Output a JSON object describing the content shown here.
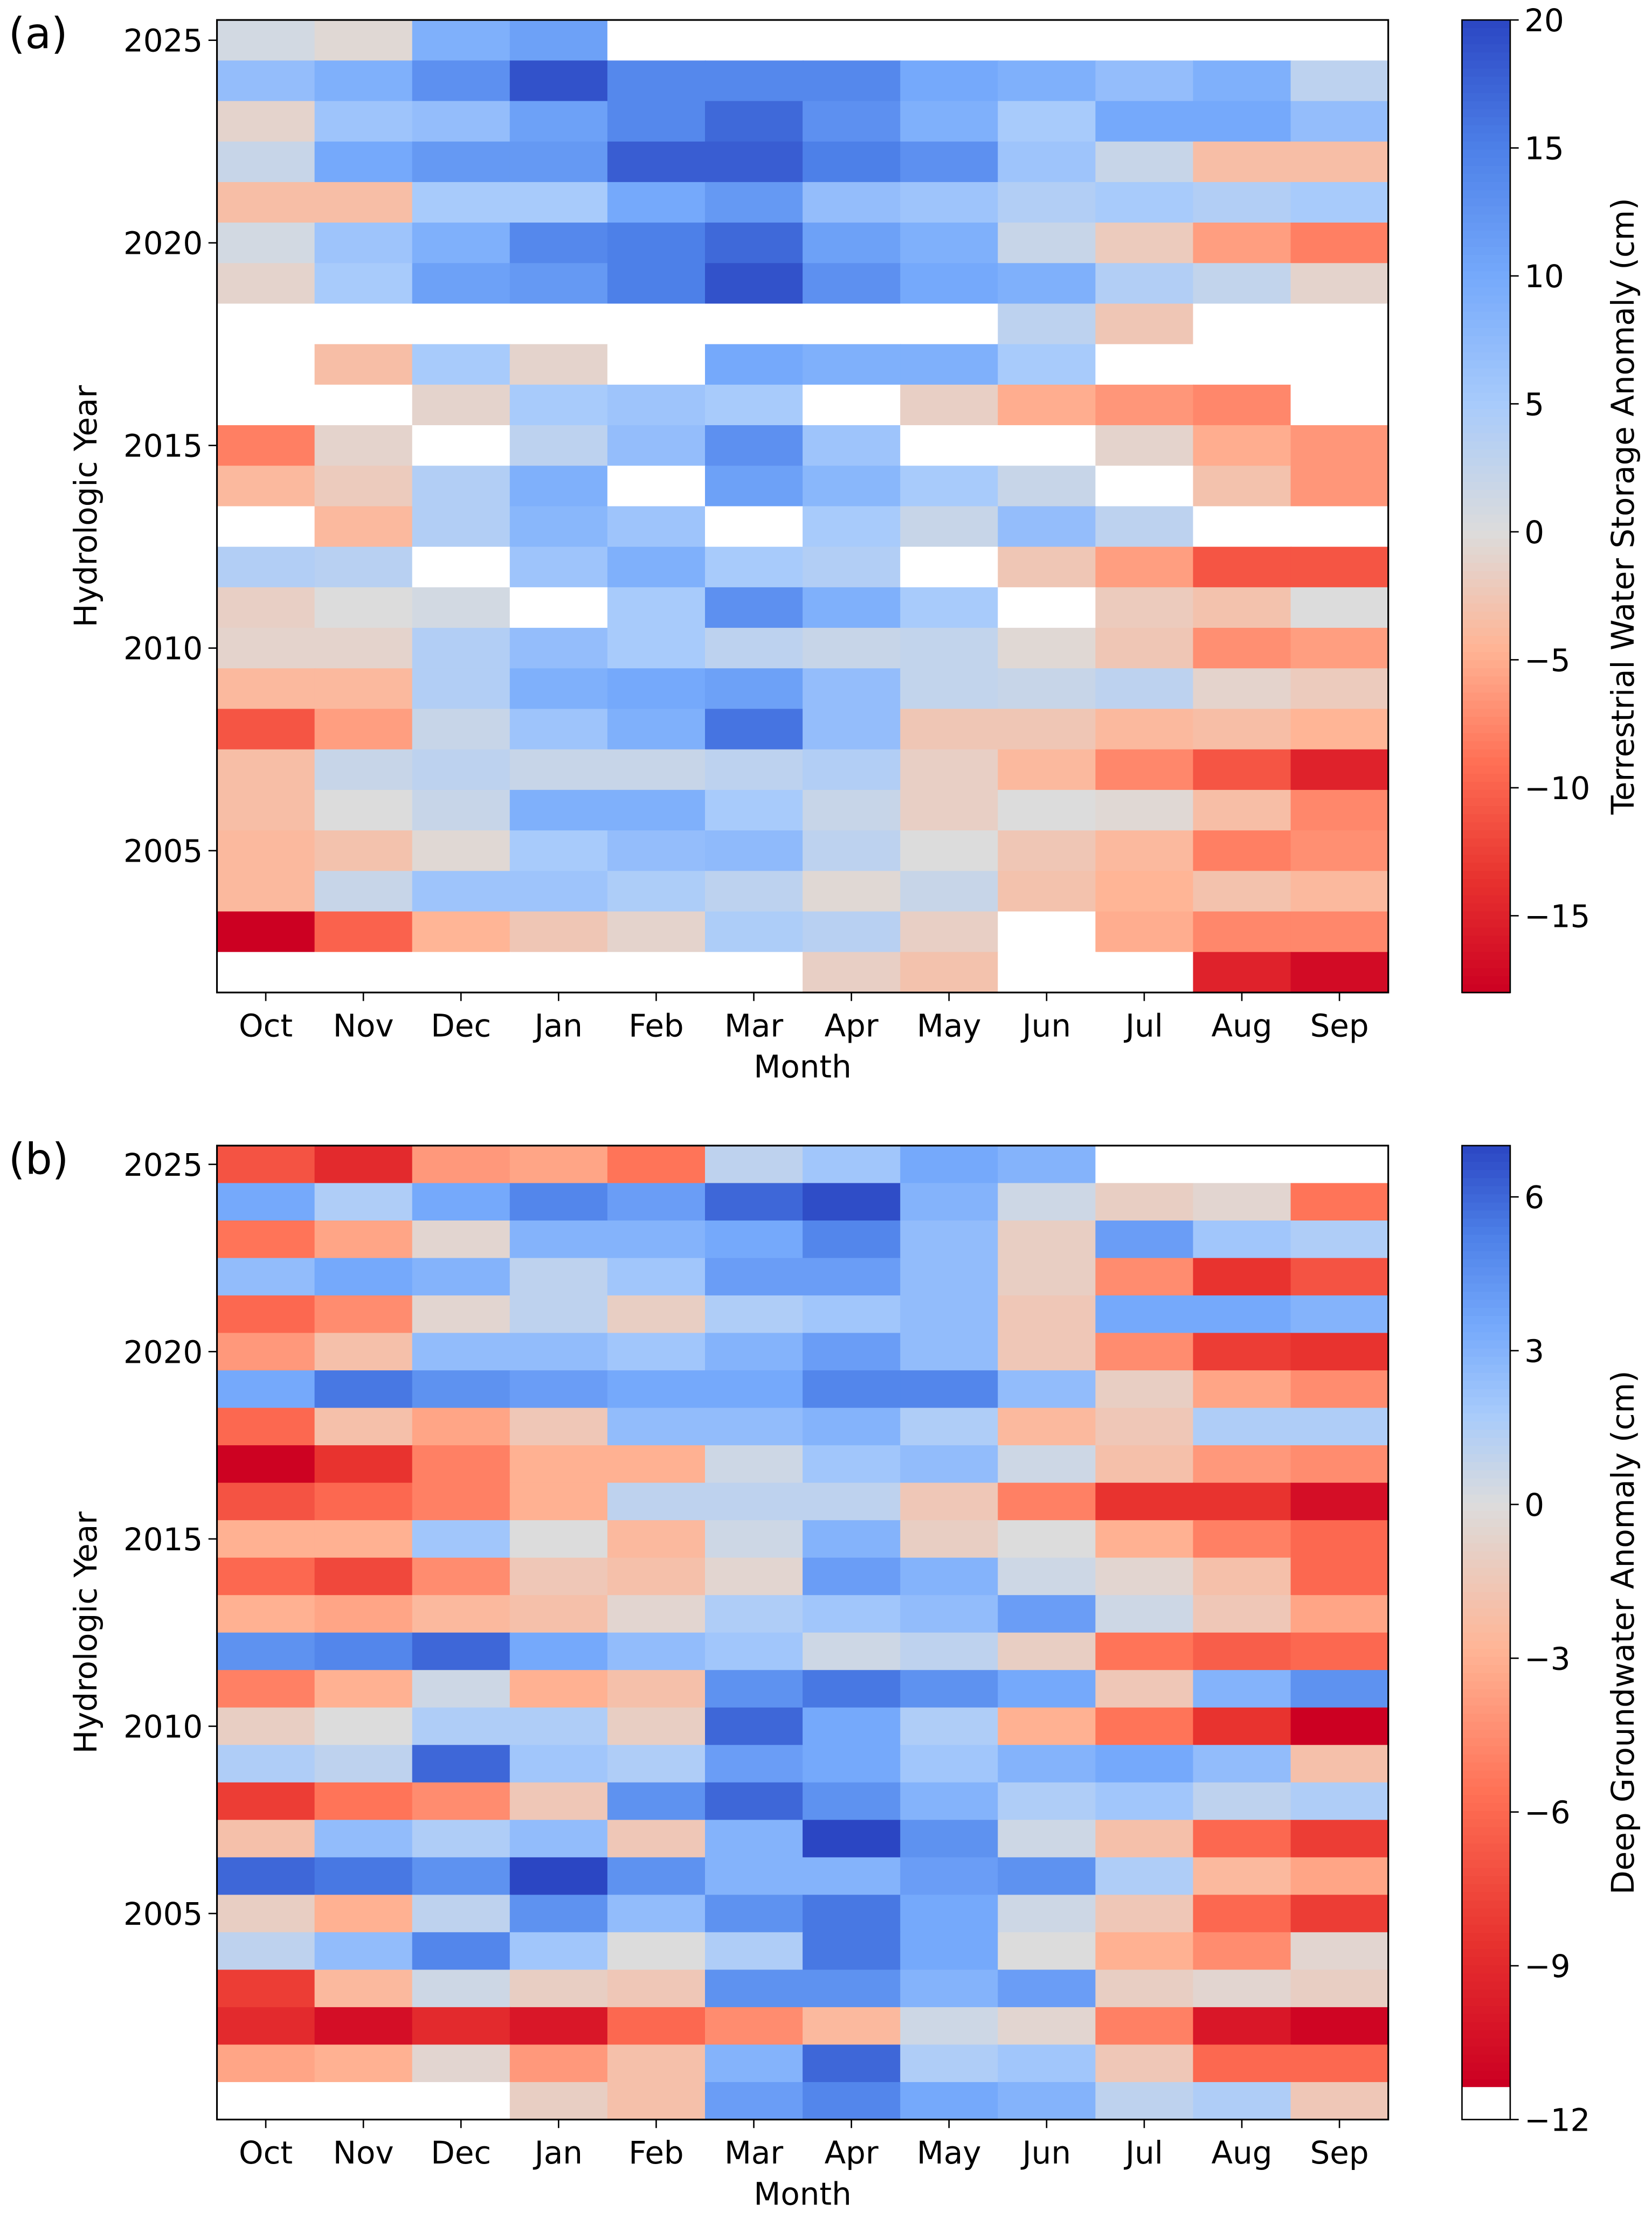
{
  "chart_data": [
    {
      "type": "heatmap",
      "panel_label": "(a)",
      "xlabel": "Month",
      "ylabel": "Hydrologic Year",
      "colorbar_label": "Terrestrial Water Storage Anomaly (cm)",
      "colorbar_range": [
        -18,
        20
      ],
      "colorbar_ticks": [
        20,
        15,
        10,
        5,
        0,
        -5,
        -10,
        -15
      ],
      "colorbar_tick_labels": [
        "20",
        "15",
        "10",
        "5",
        "0",
        "−5",
        "−10",
        "−15"
      ],
      "colormap": {
        "negative": "#cc0022",
        "center": "#dcdcdc",
        "positive": "#2b46c3",
        "missing": "#ffffff"
      },
      "x_categories": [
        "Oct",
        "Nov",
        "Dec",
        "Jan",
        "Feb",
        "Mar",
        "Apr",
        "May",
        "Jun",
        "Jul",
        "Aug",
        "Sep"
      ],
      "y_tick_labels": [
        "2025",
        "2020",
        "2015",
        "2010",
        "2005"
      ],
      "y_ticks": [
        2025,
        2020,
        2015,
        2010,
        2005
      ],
      "years": [
        2025,
        2024,
        2023,
        2022,
        2021,
        2020,
        2019,
        2018,
        2017,
        2016,
        2015,
        2014,
        2013,
        2012,
        2011,
        2010,
        2009,
        2008,
        2007,
        2006,
        2005,
        2004,
        2003,
        2002
      ],
      "values": [
        [
          1,
          -0.5,
          9,
          11,
          null,
          null,
          null,
          null,
          null,
          null,
          null,
          null
        ],
        [
          7,
          9,
          13,
          19,
          14,
          14,
          14,
          10,
          9,
          7,
          9,
          3
        ],
        [
          -1,
          6,
          7,
          11,
          14,
          17,
          13,
          9,
          5,
          10,
          10,
          7
        ],
        [
          2,
          10,
          12,
          12,
          18,
          18,
          15,
          13,
          6,
          2,
          -3.5,
          -3.5
        ],
        [
          -3.5,
          -3.5,
          5,
          5,
          10,
          12,
          7,
          6,
          4,
          5,
          4,
          5
        ],
        [
          1,
          6,
          9,
          14,
          15,
          17,
          11,
          9,
          2,
          -2,
          -6,
          -8
        ],
        [
          -1,
          5,
          11,
          12,
          15,
          19,
          13,
          10,
          9,
          4,
          2.5,
          -1
        ],
        [
          null,
          null,
          null,
          null,
          null,
          null,
          null,
          null,
          3,
          -2.5,
          null,
          null
        ],
        [
          null,
          -3.5,
          5,
          -1,
          null,
          10,
          9,
          9,
          5,
          null,
          null,
          null
        ],
        [
          null,
          null,
          -1,
          5,
          6,
          5,
          null,
          -1.5,
          -5,
          -6.5,
          -7.5,
          null
        ],
        [
          -8,
          -1,
          null,
          3,
          7,
          13,
          6,
          null,
          null,
          -1,
          -5,
          -6.5
        ],
        [
          -4,
          -2,
          4,
          9,
          null,
          11,
          8,
          5,
          2,
          null,
          -3,
          -6.5
        ],
        [
          null,
          -4,
          4,
          8,
          6,
          null,
          5,
          2,
          7,
          3,
          null,
          null
        ],
        [
          4,
          3.5,
          null,
          6,
          9,
          5,
          4,
          null,
          -2.5,
          -6,
          -11,
          -11
        ],
        [
          -1.5,
          0,
          1,
          null,
          5,
          13,
          9,
          5,
          null,
          -2,
          -3,
          0
        ],
        [
          -1,
          -1,
          4,
          7,
          5,
          3,
          2,
          2.5,
          -0.5,
          -2.5,
          -7,
          -6
        ],
        [
          -4,
          -4,
          4,
          9,
          10,
          11,
          7,
          2.5,
          2,
          3,
          -1,
          -2
        ],
        [
          -11,
          -6,
          2,
          6,
          9,
          16,
          7,
          -2.5,
          -2.5,
          -4,
          -3.5,
          -4.5
        ],
        [
          -3.5,
          2,
          3,
          2,
          2,
          3,
          4,
          -1.5,
          -4,
          -7.5,
          -11,
          -15
        ],
        [
          -3.5,
          0,
          2,
          9,
          9,
          5,
          2,
          -1.5,
          0,
          -0.5,
          -3.5,
          -7.5
        ],
        [
          -4,
          -3,
          -0.5,
          5,
          7,
          7.5,
          3,
          0,
          -2.5,
          -4,
          -8,
          -7
        ],
        [
          -4,
          2,
          6,
          6,
          4.5,
          3,
          -0.5,
          2,
          -3,
          -4.5,
          -3,
          -4
        ],
        [
          -18,
          -10,
          -4.5,
          -2.5,
          -1,
          4.5,
          3.5,
          -1.5,
          null,
          -5,
          -7.5,
          -7.5
        ],
        [
          null,
          null,
          null,
          null,
          null,
          null,
          -1.5,
          -3,
          null,
          null,
          -15,
          -17
        ]
      ]
    },
    {
      "type": "heatmap",
      "panel_label": "(b)",
      "xlabel": "Month",
      "ylabel": "Hydrologic Year",
      "colorbar_label": "Deep Groundwater Anomaly (cm)",
      "colorbar_range": [
        -12,
        7
      ],
      "colorbar_ticks": [
        6,
        3,
        0,
        -3,
        -6,
        -9,
        -12
      ],
      "colorbar_tick_labels": [
        "6",
        "3",
        "0",
        "−3",
        "−6",
        "−9",
        "−12"
      ],
      "colormap": {
        "negative": "#cc0022",
        "center": "#dcdcdc",
        "positive": "#2b46c3",
        "missing": "#ffffff"
      },
      "x_categories": [
        "Oct",
        "Nov",
        "Dec",
        "Jan",
        "Feb",
        "Mar",
        "Apr",
        "May",
        "Jun",
        "Jul",
        "Aug",
        "Sep"
      ],
      "y_tick_labels": [
        "2025",
        "2020",
        "2015",
        "2010",
        "2005"
      ],
      "y_ticks": [
        2025,
        2020,
        2015,
        2010,
        2005
      ],
      "years": [
        2025,
        2024,
        2023,
        2022,
        2021,
        2020,
        2019,
        2018,
        2017,
        2016,
        2015,
        2014,
        2013,
        2012,
        2011,
        2010,
        2009,
        2008,
        2007,
        2006,
        2005,
        2004,
        2003,
        2002,
        2001,
        2000
      ],
      "values": [
        [
          -7,
          -9,
          -4,
          -3.5,
          -5.5,
          1,
          2,
          3.5,
          3,
          null,
          null,
          null
        ],
        [
          3.5,
          1.5,
          3.5,
          5,
          4,
          6,
          6.8,
          3,
          0.5,
          -1,
          -0.5,
          -5.5
        ],
        [
          -5.5,
          -3.5,
          -0.5,
          3,
          3,
          3.5,
          5,
          2.5,
          -1,
          4,
          2,
          1.5
        ],
        [
          2.5,
          3.5,
          3,
          1,
          2,
          4,
          4,
          2.5,
          -1,
          -4.5,
          -8.5,
          -7
        ],
        [
          -6,
          -4.5,
          -0.5,
          1,
          -1,
          1.5,
          2,
          2.5,
          -1.5,
          3.5,
          3.5,
          3
        ],
        [
          -4,
          -2,
          2.5,
          2.5,
          2,
          3,
          4,
          2.5,
          -1.5,
          -4.5,
          -8,
          -8.5
        ],
        [
          3.5,
          5.5,
          4.5,
          4,
          3.5,
          3.5,
          5,
          5,
          2.5,
          -1,
          -3.5,
          -4.5
        ],
        [
          -6,
          -2,
          -3.5,
          -1.5,
          2.5,
          2.5,
          3,
          1.5,
          -2.5,
          -1.5,
          1.5,
          1.5
        ],
        [
          -11.2,
          -8.5,
          -5,
          -3,
          -3,
          0.5,
          2,
          2.5,
          0.5,
          -2,
          -4,
          -4.5
        ],
        [
          -7,
          -6,
          -5,
          -3,
          1,
          1,
          1,
          -1.5,
          -5,
          -8.5,
          -8.5,
          -10.5
        ],
        [
          -3,
          -3,
          2,
          0,
          -2.5,
          0.5,
          3,
          -1,
          0,
          -3,
          -5,
          -6
        ],
        [
          -6,
          -7.5,
          -4.5,
          -1.5,
          -2,
          -0.5,
          4,
          3,
          0.5,
          -0.5,
          -2,
          -6
        ],
        [
          -3,
          -3.5,
          -2.5,
          -2,
          -0.5,
          1.5,
          2,
          2.5,
          4,
          0.5,
          -1.5,
          -3.5
        ],
        [
          4.5,
          5,
          6,
          3.5,
          2.5,
          2,
          0.5,
          1,
          -1,
          -5.5,
          -6.5,
          -6
        ],
        [
          -5,
          -3,
          0.5,
          -3,
          -2,
          4.5,
          5.5,
          4.5,
          3.5,
          -1.5,
          3,
          4.5
        ],
        [
          -1,
          0,
          1.5,
          1.5,
          -1,
          6,
          3.5,
          1.5,
          -3,
          -5.5,
          -8.5,
          -11.5
        ],
        [
          1.5,
          1,
          6,
          2,
          1.5,
          4,
          3.5,
          2,
          3,
          3.5,
          2.5,
          -2
        ],
        [
          -8,
          -5.5,
          -4.5,
          -1.5,
          4.5,
          6,
          4.5,
          3,
          1.5,
          2,
          1,
          1.5
        ],
        [
          -2,
          2.5,
          1.5,
          2.5,
          -1.5,
          3,
          7,
          4.5,
          0.5,
          -2,
          -6,
          -8
        ],
        [
          6,
          5.5,
          4.5,
          7,
          4.5,
          3,
          3,
          4,
          4.5,
          1.5,
          -2.5,
          -3.5
        ],
        [
          -1,
          -3,
          1,
          4.5,
          2.5,
          4.5,
          5.5,
          3.5,
          0.5,
          -1.5,
          -6,
          -8
        ],
        [
          1,
          2.5,
          5,
          2,
          0,
          1.5,
          5.5,
          3.5,
          0,
          -3,
          -4.5,
          -0.5
        ],
        [
          -8,
          -2.5,
          0.5,
          -1,
          -1.5,
          4.5,
          4.5,
          3,
          4,
          -1,
          -0.5,
          -1
        ],
        [
          -9,
          -10.5,
          -9,
          -10,
          -6,
          -4.5,
          -2.5,
          0.5,
          -0.5,
          -5,
          -10,
          -11
        ],
        [
          -3.5,
          -3,
          -0.5,
          -4,
          -2,
          3,
          6,
          1.5,
          2,
          -1.5,
          -6,
          -6
        ],
        [
          null,
          null,
          null,
          -1,
          -2,
          4,
          5,
          3.5,
          3,
          1,
          1.5,
          -1.5
        ]
      ]
    }
  ]
}
